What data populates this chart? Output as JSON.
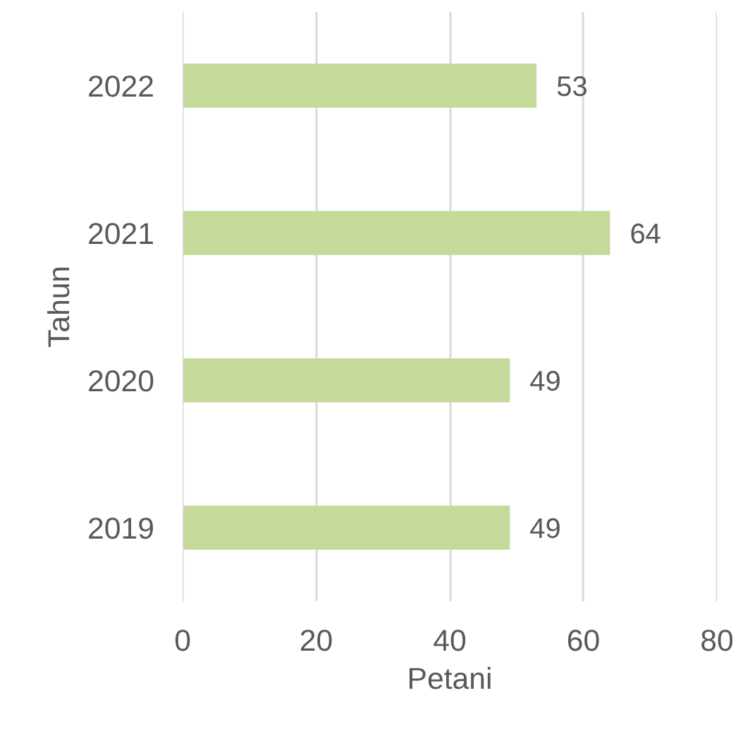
{
  "chart_data": {
    "type": "bar",
    "orientation": "horizontal",
    "xlabel": "Petani",
    "ylabel": "Tahun",
    "categories": [
      "2022",
      "2021",
      "2020",
      "2019"
    ],
    "values": [
      53,
      64,
      49,
      49
    ],
    "color": "#c5d99b",
    "xlim": [
      0,
      80
    ],
    "xticks": [
      0,
      20,
      40,
      60,
      80
    ],
    "grid": "x",
    "data_labels": true
  }
}
